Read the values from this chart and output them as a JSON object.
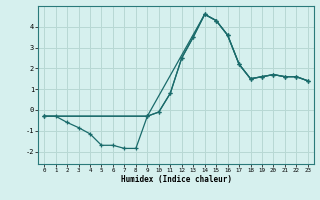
{
  "xlabel": "Humidex (Indice chaleur)",
  "bg_color": "#d6f0ee",
  "grid_color": "#b8d8d4",
  "line_color": "#1a6b6b",
  "marker_color": "#1a6b6b",
  "xlim": [
    -0.5,
    23.5
  ],
  "ylim": [
    -2.6,
    5.0
  ],
  "yticks": [
    -2,
    -1,
    0,
    1,
    2,
    3,
    4
  ],
  "xticks": [
    0,
    1,
    2,
    3,
    4,
    5,
    6,
    7,
    8,
    9,
    10,
    11,
    12,
    13,
    14,
    15,
    16,
    17,
    18,
    19,
    20,
    21,
    22,
    23
  ],
  "series": [
    {
      "x": [
        0,
        1,
        2,
        3,
        4,
        5,
        6,
        7,
        8,
        9,
        10,
        11,
        12,
        13,
        14,
        15,
        16,
        17,
        18,
        19,
        20,
        21,
        22,
        23
      ],
      "y": [
        -0.3,
        -0.3,
        -0.6,
        -0.85,
        -1.15,
        -1.7,
        -1.7,
        -1.85,
        -1.85,
        -0.3,
        -0.1,
        0.8,
        2.5,
        3.5,
        4.6,
        4.3,
        3.6,
        2.2,
        1.5,
        1.6,
        1.7,
        1.6,
        1.6,
        1.4
      ]
    },
    {
      "x": [
        0,
        9,
        14,
        15,
        16,
        17,
        18,
        19,
        20,
        21,
        22,
        23
      ],
      "y": [
        -0.3,
        -0.3,
        4.6,
        4.3,
        3.6,
        2.2,
        1.5,
        1.6,
        1.7,
        1.6,
        1.6,
        1.4
      ]
    },
    {
      "x": [
        0,
        9,
        10,
        11,
        12,
        13,
        14,
        15,
        16,
        17,
        18,
        19,
        20,
        21,
        22,
        23
      ],
      "y": [
        -0.3,
        -0.3,
        -0.1,
        0.8,
        2.5,
        3.5,
        4.6,
        4.3,
        3.6,
        2.2,
        1.5,
        1.6,
        1.7,
        1.6,
        1.6,
        1.4
      ]
    }
  ]
}
